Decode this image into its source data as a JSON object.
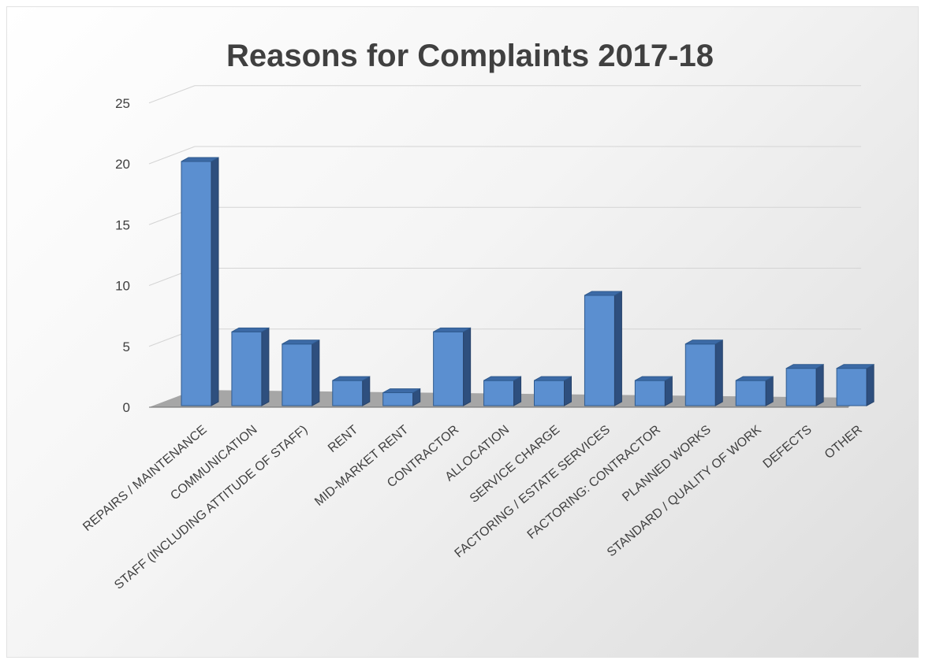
{
  "chart_data": {
    "type": "bar",
    "title": "Reasons for Complaints 2017-18",
    "xlabel": "",
    "ylabel": "",
    "ylim": [
      0,
      25
    ],
    "yticks": [
      0,
      5,
      10,
      15,
      20,
      25
    ],
    "grid": true,
    "style": "3d-column",
    "bar_color": "#4f81bd",
    "categories": [
      "REPAIRS / MAINTENANCE",
      "COMMUNICATION",
      "STAFF (INCLUDING ATTITUDE OF STAFF)",
      "RENT",
      "MID-MARKET RENT",
      "CONTRACTOR",
      "ALLOCATION",
      "SERVICE CHARGE",
      "FACTORING / ESTATE SERVICES",
      "FACTORING: CONTRACTOR",
      "PLANNED WORKS",
      "STANDARD / QUALITY OF WORK",
      "DEFECTS",
      "OTHER"
    ],
    "values": [
      20,
      6,
      5,
      2,
      1,
      6,
      2,
      2,
      9,
      2,
      5,
      2,
      3,
      3
    ]
  }
}
